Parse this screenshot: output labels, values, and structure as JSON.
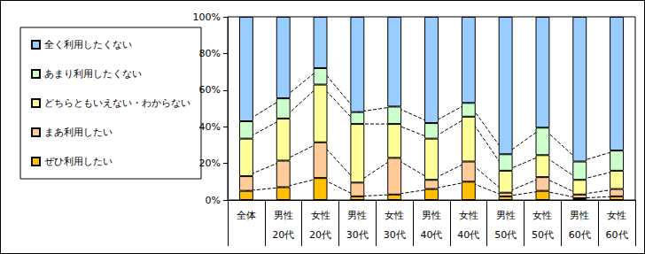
{
  "chart_data": {
    "type": "bar",
    "stacked": true,
    "grid": false,
    "legend": "left",
    "categories": [
      "全体",
      "男性\n20代",
      "女性\n20代",
      "男性\n30代",
      "女性\n30代",
      "男性\n40代",
      "女性\n40代",
      "男性\n50代",
      "女性\n50代",
      "男性\n60代",
      "女性\n60代"
    ],
    "ylim": [
      0,
      100
    ],
    "yticks": [
      {
        "value": 0,
        "label": "0%"
      },
      {
        "value": 20,
        "label": "20%"
      },
      {
        "value": 40,
        "label": "40%"
      },
      {
        "value": 60,
        "label": "60%"
      },
      {
        "value": 80,
        "label": "80%"
      },
      {
        "value": 100,
        "label": "100%"
      }
    ],
    "series": [
      {
        "name": "ぜひ利用したい",
        "color": "#FFC000",
        "values": [
          5,
          7,
          12,
          2,
          3,
          6,
          10,
          2,
          5,
          1,
          2
        ]
      },
      {
        "name": "まあ利用したい",
        "color": "#FFCC99",
        "values": [
          8,
          14.5,
          19.5,
          7.5,
          20,
          5,
          11,
          2,
          7.5,
          2,
          4
        ]
      },
      {
        "name": "どちらともいえない・わからない",
        "color": "#FFFF99",
        "values": [
          20.5,
          23,
          31.5,
          32,
          18.5,
          22.5,
          24.5,
          12,
          12,
          8,
          10
        ]
      },
      {
        "name": "あまり利用したくない",
        "color": "#CCFFCC",
        "values": [
          9.5,
          11,
          9,
          6.5,
          9.5,
          8.5,
          7.5,
          9,
          15,
          10,
          11
        ]
      },
      {
        "name": "全く利用したくない",
        "color": "#99CCFF",
        "values": [
          57,
          44.5,
          28,
          52,
          49,
          58,
          47,
          75,
          60.5,
          79,
          73
        ]
      }
    ]
  }
}
